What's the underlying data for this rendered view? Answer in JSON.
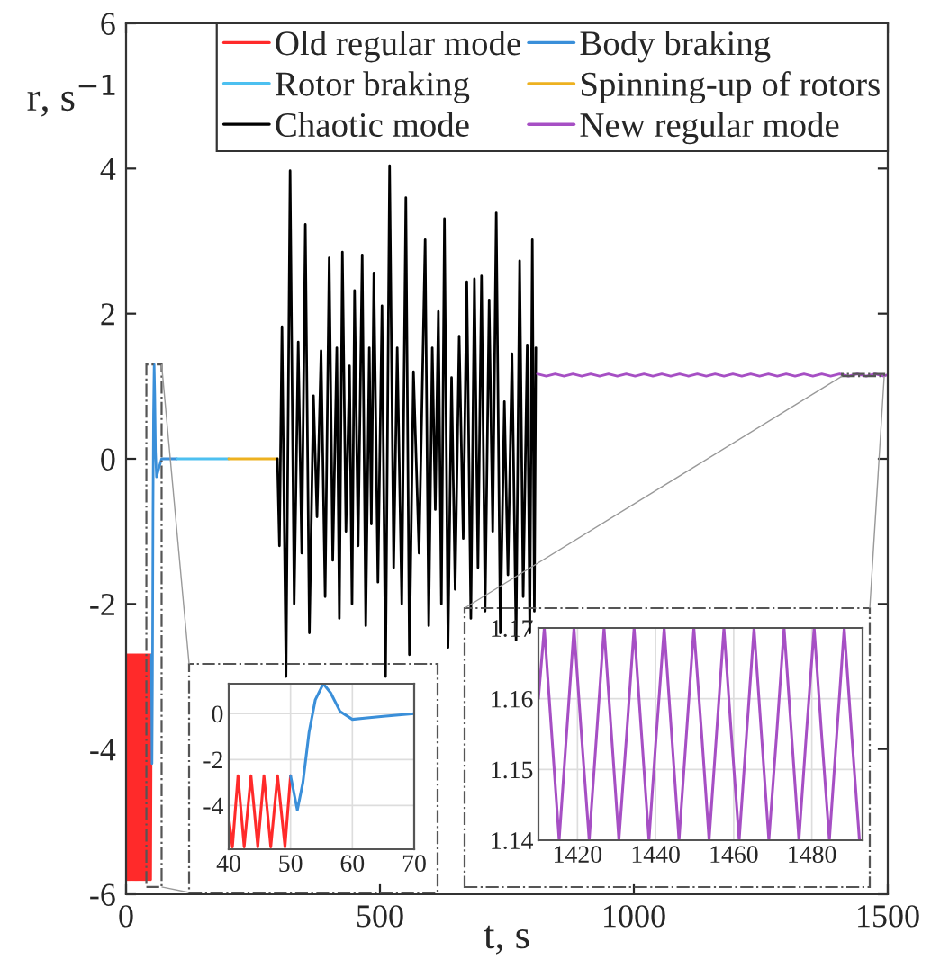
{
  "chart_data": [
    {
      "type": "line",
      "xlabel": "t, s",
      "ylabel": "r, s$^{−1}$",
      "xlim": [
        0,
        1500
      ],
      "ylim": [
        -6,
        6
      ],
      "xticks": [
        0,
        500,
        1000,
        1500
      ],
      "yticks": [
        -6,
        -4,
        -2,
        0,
        2,
        4,
        6
      ],
      "grid": false,
      "legend": "top right",
      "series": [
        {
          "name": "Old regular mode",
          "color": "#ff2a2a",
          "x": [
            0,
            0.5,
            1.5,
            2.5,
            3.5,
            4.5,
            5.5,
            6.5,
            7.5,
            8.5,
            9.5,
            10.5,
            11.5,
            12.5,
            13.5,
            14.5,
            15.5,
            16.5,
            17.5,
            18.5,
            19.5,
            20.5,
            21.5,
            22.5,
            23.5,
            24.5,
            25.5,
            26.5,
            27.5,
            28.5,
            29.5,
            30.5,
            31.5,
            32.5,
            33.5,
            34.5,
            35.5,
            36.5,
            37.5,
            38.5,
            39.5,
            40.5,
            41.5,
            42.5,
            43.5,
            44.5,
            45.5,
            46.5,
            47.5,
            48.5,
            50
          ],
          "values": [
            -4.3,
            -5.8,
            -2.7,
            -5.8,
            -2.7,
            -5.8,
            -2.7,
            -5.8,
            -2.7,
            -5.8,
            -2.7,
            -5.8,
            -2.7,
            -5.8,
            -2.7,
            -5.8,
            -2.7,
            -5.8,
            -2.7,
            -5.8,
            -2.7,
            -5.8,
            -2.7,
            -5.8,
            -2.7,
            -5.8,
            -2.7,
            -5.8,
            -2.7,
            -5.8,
            -2.7,
            -5.8,
            -2.7,
            -5.8,
            -2.7,
            -5.8,
            -2.7,
            -5.8,
            -2.7,
            -5.8,
            -2.7,
            -5.8,
            -2.7,
            -5.8,
            -2.7,
            -5.8,
            -2.7,
            -5.8,
            -2.7,
            -5.8,
            -2.7
          ]
        },
        {
          "name": "Body braking",
          "color": "#3a8fd9",
          "x": [
            50,
            51.1,
            52,
            53,
            54,
            55.3,
            56.5,
            58,
            60,
            62,
            65,
            70,
            100
          ],
          "values": [
            -2.7,
            -4.2,
            -3.0,
            -0.8,
            0.6,
            1.3,
            0.9,
            0.1,
            -0.25,
            -0.2,
            -0.12,
            0,
            0
          ]
        },
        {
          "name": "Rotor braking",
          "color": "#4dc0f0",
          "x": [
            100,
            202
          ],
          "values": [
            0,
            0
          ]
        },
        {
          "name": "Spinning-up of rotors",
          "color": "#edb120",
          "x": [
            202,
            298
          ],
          "values": [
            0,
            0
          ]
        },
        {
          "name": "Chaotic mode",
          "color": "#000000",
          "x": [
            298,
            302,
            307,
            315,
            323,
            331,
            339,
            346,
            353,
            361,
            369,
            376,
            384,
            392,
            400,
            407,
            415,
            420,
            426,
            433,
            440,
            445,
            450,
            457,
            465,
            472,
            479,
            483,
            488,
            496,
            504,
            511,
            519,
            527,
            534,
            543,
            551,
            558,
            566,
            577,
            589,
            596,
            603,
            609,
            615,
            621,
            627,
            634,
            641,
            648,
            656,
            664,
            671,
            679,
            686,
            693,
            700,
            707,
            715,
            722,
            729,
            737,
            745,
            752,
            760,
            768,
            775,
            782,
            790,
            795,
            800,
            804,
            807
          ],
          "values": [
            0,
            -1.2,
            1.82,
            -3.0,
            3.97,
            -2.0,
            1.61,
            -1.3,
            3.23,
            -2.4,
            0.87,
            -0.8,
            1.49,
            -1.9,
            2.77,
            -1.4,
            1.53,
            -2.2,
            2.85,
            -1.0,
            1.28,
            -2.0,
            2.32,
            -1.2,
            2.81,
            -2.3,
            1.53,
            -0.9,
            2.56,
            -1.7,
            2.11,
            -3.0,
            4.04,
            -1.5,
            1.53,
            -2.0,
            3.6,
            -2.7,
            1.2,
            -1.3,
            3.02,
            -2.3,
            1.53,
            -0.7,
            2.03,
            -2.0,
            3.31,
            -2.6,
            1.12,
            -1.8,
            1.69,
            -1.1,
            2.44,
            -2.2,
            2.48,
            -1.5,
            2.52,
            -2.1,
            2.19,
            -1.0,
            3.39,
            -2.4,
            0.79,
            -1.6,
            1.45,
            -2.5,
            2.73,
            -1.9,
            1.57,
            -2.4,
            3.02,
            -2.1,
            1.53
          ]
        },
        {
          "name": "New regular mode",
          "color": "#a64fc4",
          "x": [
            810,
            827.5,
            845,
            862.5,
            880,
            897.5,
            915,
            932.5,
            950,
            967.5,
            985,
            1002.5,
            1020,
            1037.5,
            1055,
            1072.5,
            1090,
            1107.5,
            1125,
            1142.5,
            1160,
            1177.5,
            1195,
            1212.5,
            1230,
            1247.5,
            1265,
            1282.5,
            1300,
            1317.5,
            1335,
            1352.5,
            1370,
            1387.5,
            1405,
            1422.5,
            1440,
            1457.5,
            1475,
            1492.5,
            1500
          ],
          "values": [
            1.17,
            1.14,
            1.17,
            1.14,
            1.17,
            1.14,
            1.17,
            1.14,
            1.17,
            1.14,
            1.17,
            1.14,
            1.17,
            1.14,
            1.17,
            1.14,
            1.17,
            1.14,
            1.17,
            1.14,
            1.17,
            1.14,
            1.17,
            1.14,
            1.17,
            1.14,
            1.17,
            1.14,
            1.17,
            1.14,
            1.17,
            1.14,
            1.17,
            1.14,
            1.17,
            1.14,
            1.17,
            1.14,
            1.17,
            1.14,
            1.16
          ]
        }
      ]
    },
    {
      "type": "line",
      "xlim": [
        40,
        70
      ],
      "ylim": [
        -5.9,
        1.3
      ],
      "xticks": [
        40,
        50,
        60,
        70
      ],
      "yticks": [
        -4,
        -2,
        0
      ],
      "grid": true,
      "series": [
        {
          "color": "#ff2a2a",
          "x": [
            40,
            40.6,
            41.5,
            42.5,
            43.6,
            44.7,
            45.7,
            46.8,
            47.9,
            49.1,
            50
          ],
          "values": [
            -4.5,
            -5.8,
            -2.7,
            -5.8,
            -2.7,
            -5.8,
            -2.7,
            -5.8,
            -2.7,
            -5.8,
            -2.7
          ]
        },
        {
          "color": "#3a8fd9",
          "x": [
            50,
            51.1,
            52,
            53,
            54,
            55.3,
            56.5,
            58,
            60,
            62,
            65,
            70
          ],
          "values": [
            -2.7,
            -4.2,
            -3.0,
            -0.8,
            0.6,
            1.3,
            0.9,
            0.1,
            -0.25,
            -0.2,
            -0.12,
            0
          ]
        }
      ]
    },
    {
      "type": "line",
      "xlim": [
        1410,
        1493
      ],
      "ylim": [
        1.14,
        1.17
      ],
      "xticks": [
        1420,
        1440,
        1460,
        1480
      ],
      "yticks": [
        1.14,
        1.15,
        1.16,
        1.17
      ],
      "grid": true,
      "series": [
        {
          "color": "#a64fc4",
          "x": [
            1410,
            1411.5,
            1413.4,
            1415.3,
            1417.2,
            1419.1,
            1421.0,
            1423.0,
            1424.9,
            1426.8,
            1428.7,
            1430.6,
            1432.6,
            1434.5,
            1436.4,
            1438.3,
            1440.2,
            1442.2,
            1444.1,
            1446.0,
            1447.9,
            1449.8,
            1451.8,
            1453.7,
            1455.6,
            1457.5,
            1459.4,
            1461.4,
            1463.3,
            1465.2,
            1467.1,
            1469.0,
            1471.0,
            1472.9,
            1474.8,
            1476.7,
            1478.6,
            1480.6,
            1482.5,
            1484.5,
            1486.4,
            1488.3,
            1490.2,
            1492.2
          ],
          "values": [
            1.16,
            1.17,
            1.155,
            1.14,
            1.155,
            1.17,
            1.155,
            1.14,
            1.155,
            1.17,
            1.155,
            1.14,
            1.155,
            1.17,
            1.155,
            1.14,
            1.155,
            1.17,
            1.155,
            1.14,
            1.155,
            1.17,
            1.155,
            1.14,
            1.155,
            1.17,
            1.155,
            1.14,
            1.155,
            1.17,
            1.155,
            1.14,
            1.155,
            1.17,
            1.155,
            1.14,
            1.155,
            1.17,
            1.155,
            1.14,
            1.155,
            1.17,
            1.155,
            1.14
          ]
        }
      ]
    }
  ]
}
